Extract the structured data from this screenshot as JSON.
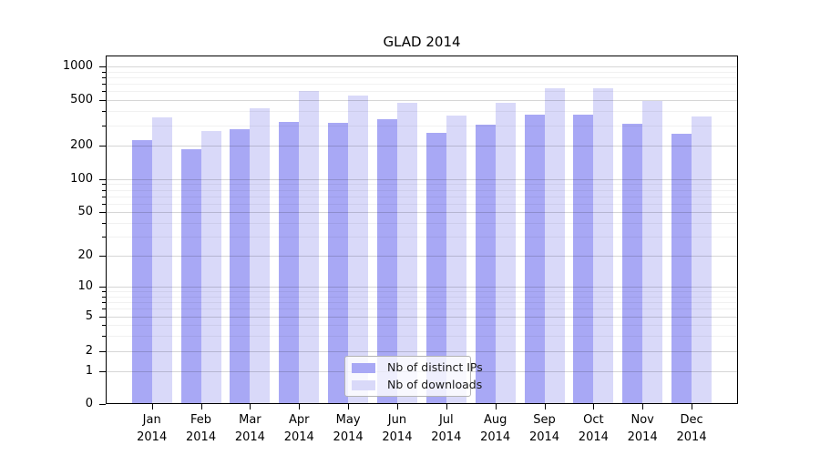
{
  "title": "GLAD 2014",
  "colors": {
    "ips_bar": "#a8a8f5",
    "downloads_bar": "#d9d9f9",
    "axis": "#000000",
    "grid_major": "rgba(0,0,0,0.16)",
    "grid_minor": "rgba(0,0,0,0.055)",
    "legend_border": "#b3b3b3",
    "legend_bg": "rgba(255,255,255,0.8)"
  },
  "chart_data": {
    "type": "bar",
    "title": "GLAD 2014",
    "categories": [
      "Jan 2014",
      "Feb 2014",
      "Mar 2014",
      "Apr 2014",
      "May 2014",
      "Jun 2014",
      "Jul 2014",
      "Aug 2014",
      "Sep 2014",
      "Oct 2014",
      "Nov 2014",
      "Dec 2014"
    ],
    "series": [
      {
        "name": "Nb of distinct IPs",
        "values": [
          225,
          185,
          280,
          320,
          315,
          340,
          260,
          305,
          375,
          370,
          310,
          255
        ]
      },
      {
        "name": "Nb of downloads",
        "values": [
          350,
          270,
          425,
          600,
          550,
          475,
          365,
          470,
          640,
          640,
          490,
          360
        ]
      }
    ],
    "xlabel": "",
    "ylabel": "",
    "yscale": "log-like",
    "ylim": [
      0,
      1000
    ],
    "yticks": [
      0,
      1,
      2,
      5,
      10,
      20,
      50,
      100,
      200,
      500,
      1000
    ],
    "grid": true,
    "legend_position": "lower-center"
  }
}
